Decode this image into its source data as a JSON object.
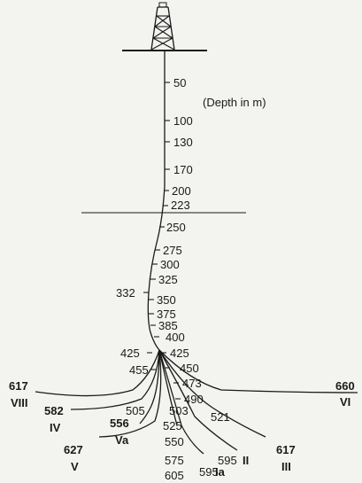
{
  "depth_unit_label": "(Depth in m)",
  "main_depth_labels": [
    "50",
    "100",
    "130",
    "170",
    "200",
    "223",
    "250",
    "275",
    "300",
    "325",
    "332",
    "350",
    "375",
    "385",
    "400",
    "425",
    "425",
    "450",
    "455",
    "473",
    "490"
  ],
  "branch_depth_labels": [
    "503",
    "505",
    "521",
    "525",
    "550",
    "575",
    "595",
    "595",
    "605"
  ],
  "branches": [
    {
      "depth": "617",
      "roman": "VIII"
    },
    {
      "depth": "582",
      "roman": "IV"
    },
    {
      "depth": "556",
      "roman": "Va"
    },
    {
      "depth": "627",
      "roman": "V"
    },
    {
      "depth": "595",
      "roman": "Ia"
    },
    {
      "depth": "595",
      "roman": "II"
    },
    {
      "depth": "617",
      "roman": "III"
    },
    {
      "depth": "660",
      "roman": "VI"
    }
  ]
}
